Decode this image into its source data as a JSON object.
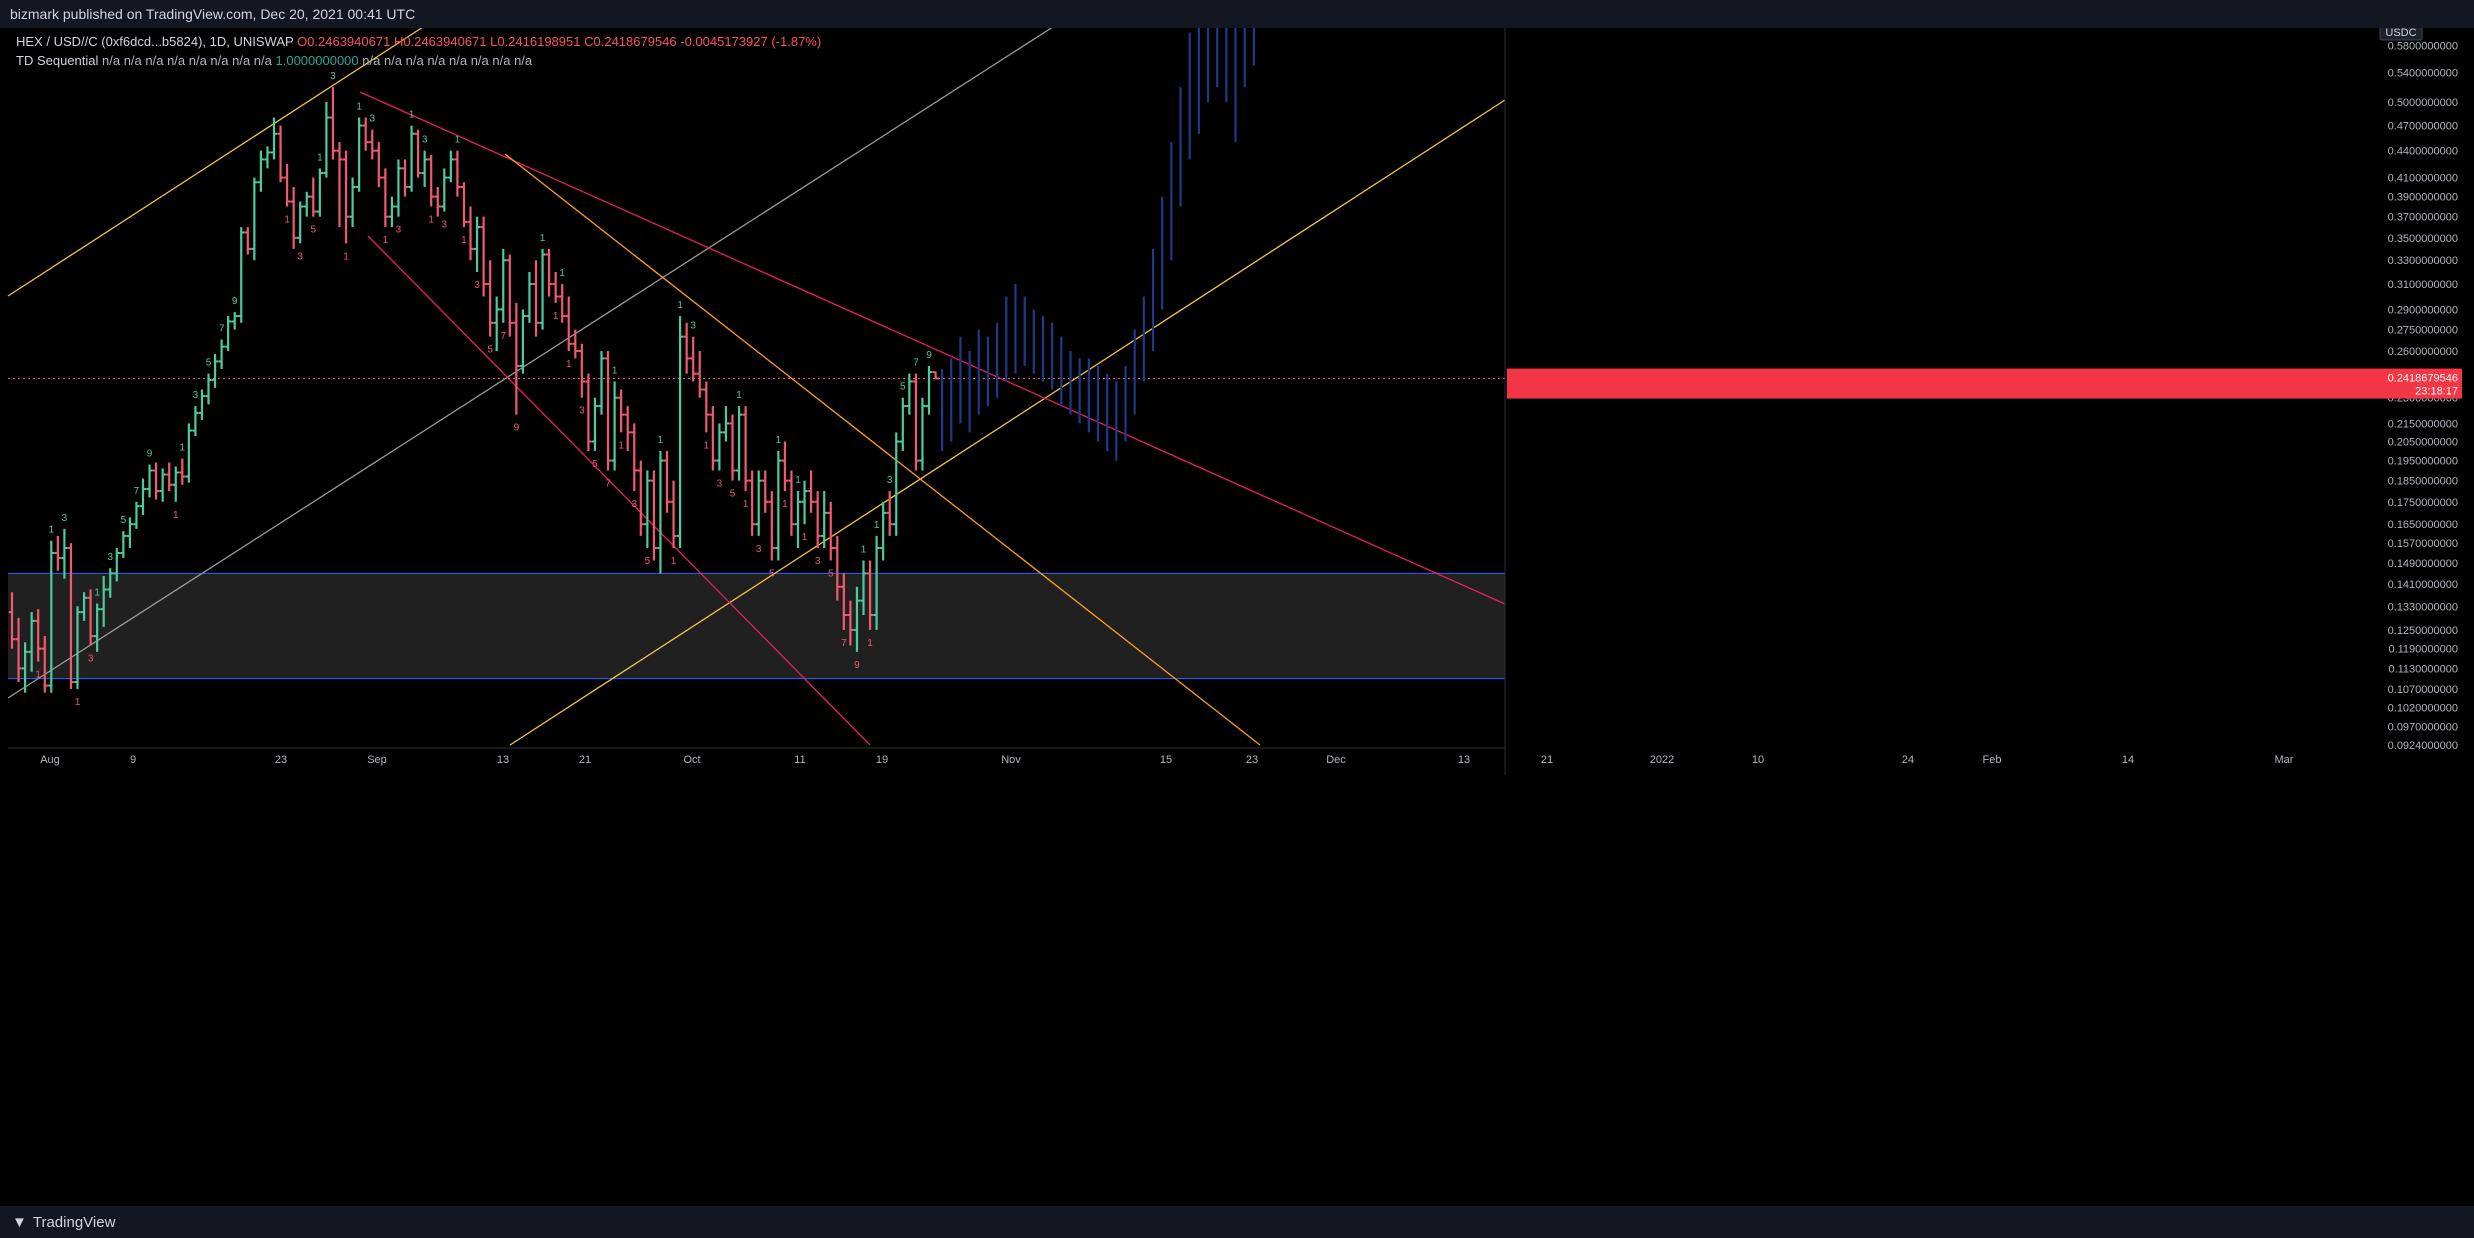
{
  "header": {
    "published": "bizmark published on TradingView.com, Dec 20, 2021 00:41 UTC"
  },
  "legend": {
    "symbol": "HEX / USD//C (0xf6dcd...b5824), 1D, UNISWAP",
    "open": "O0.2463940671",
    "high": "H0.2463940671",
    "low": "L0.2416198951",
    "close": "C0.2418679546",
    "change": "-0.0045173927 (-1.87%)",
    "indicator_name": "TD Sequential",
    "indicator_values_a": "n/a n/a n/a n/a n/a n/a n/a n/a",
    "indicator_highlight": "1.0000000000",
    "indicator_values_b": "n/a n/a n/a n/a n/a n/a n/a n/a"
  },
  "price_axis": {
    "currency": "USDC",
    "current_price": "0.2418679546",
    "countdown": "23:18:17"
  },
  "footer": {
    "brand": "TradingView"
  },
  "colors": {
    "up": "#4ecb9c",
    "down": "#f05a6e",
    "projection": "#1e3a8a",
    "trend_yellow": "#f5c542",
    "trend_orange": "#ff9f1a",
    "trend_pink": "#e91e63",
    "trend_gray": "#9a9a9a",
    "zone": "#3a3a3a",
    "zone_line": "#2962ff"
  },
  "chart_data": {
    "type": "candlestick",
    "symbol": "HEX / USD//C",
    "interval": "1D",
    "y_scale": "log",
    "ylim": [
      0.0924,
      0.63
    ],
    "y_ticks": [
      "0.6200000000",
      "0.5800000000",
      "0.5400000000",
      "0.5000000000",
      "0.4700000000",
      "0.4400000000",
      "0.4100000000",
      "0.3900000000",
      "0.3700000000",
      "0.3500000000",
      "0.3300000000",
      "0.3100000000",
      "0.2900000000",
      "0.2750000000",
      "0.2600000000",
      "0.2450000000",
      "0.2300000000",
      "0.2150000000",
      "0.2050000000",
      "0.1950000000",
      "0.1850000000",
      "0.1750000000",
      "0.1650000000",
      "0.1570000000",
      "0.1490000000",
      "0.1410000000",
      "0.1330000000",
      "0.1250000000",
      "0.1190000000",
      "0.1130000000",
      "0.1070000000",
      "0.1020000000",
      "0.0970000000",
      "0.0924000000"
    ],
    "x_ticks": [
      "Aug",
      "9",
      "23",
      "Sep",
      "13",
      "21",
      "Oct",
      "11",
      "19",
      "Nov",
      "15",
      "23",
      "Dec",
      "13",
      "21",
      "2022",
      "10",
      "24",
      "Feb",
      "14",
      "Mar"
    ],
    "ohlc": [
      [
        0.131,
        0.138,
        0.119,
        0.122
      ],
      [
        0.122,
        0.129,
        0.109,
        0.113
      ],
      [
        0.113,
        0.121,
        0.106,
        0.118
      ],
      [
        0.118,
        0.131,
        0.112,
        0.128
      ],
      [
        0.128,
        0.132,
        0.115,
        0.119
      ],
      [
        0.119,
        0.123,
        0.106,
        0.108
      ],
      [
        0.108,
        0.158,
        0.106,
        0.153
      ],
      [
        0.153,
        0.16,
        0.146,
        0.151
      ],
      [
        0.151,
        0.163,
        0.143,
        0.155
      ],
      [
        0.155,
        0.157,
        0.107,
        0.109
      ],
      [
        0.109,
        0.133,
        0.107,
        0.131
      ],
      [
        0.131,
        0.138,
        0.128,
        0.136
      ],
      [
        0.136,
        0.139,
        0.12,
        0.123
      ],
      [
        0.123,
        0.134,
        0.118,
        0.132
      ],
      [
        0.132,
        0.144,
        0.126,
        0.139
      ],
      [
        0.139,
        0.147,
        0.136,
        0.145
      ],
      [
        0.145,
        0.155,
        0.142,
        0.153
      ],
      [
        0.153,
        0.162,
        0.151,
        0.16
      ],
      [
        0.16,
        0.168,
        0.155,
        0.165
      ],
      [
        0.165,
        0.175,
        0.163,
        0.173
      ],
      [
        0.173,
        0.186,
        0.169,
        0.181
      ],
      [
        0.181,
        0.193,
        0.177,
        0.19
      ],
      [
        0.19,
        0.194,
        0.176,
        0.18
      ],
      [
        0.18,
        0.191,
        0.175,
        0.188
      ],
      [
        0.188,
        0.194,
        0.18,
        0.183
      ],
      [
        0.183,
        0.192,
        0.175,
        0.189
      ],
      [
        0.189,
        0.196,
        0.183,
        0.187
      ],
      [
        0.187,
        0.215,
        0.184,
        0.211
      ],
      [
        0.211,
        0.225,
        0.208,
        0.221
      ],
      [
        0.221,
        0.235,
        0.217,
        0.231
      ],
      [
        0.231,
        0.245,
        0.226,
        0.241
      ],
      [
        0.241,
        0.258,
        0.236,
        0.253
      ],
      [
        0.253,
        0.268,
        0.248,
        0.263
      ],
      [
        0.263,
        0.285,
        0.26,
        0.281
      ],
      [
        0.281,
        0.288,
        0.275,
        0.285
      ],
      [
        0.285,
        0.36,
        0.28,
        0.355
      ],
      [
        0.355,
        0.36,
        0.335,
        0.34
      ],
      [
        0.34,
        0.41,
        0.33,
        0.405
      ],
      [
        0.405,
        0.44,
        0.395,
        0.43
      ],
      [
        0.43,
        0.445,
        0.42,
        0.438
      ],
      [
        0.438,
        0.48,
        0.43,
        0.46
      ],
      [
        0.46,
        0.47,
        0.405,
        0.41
      ],
      [
        0.41,
        0.425,
        0.38,
        0.385
      ],
      [
        0.385,
        0.4,
        0.34,
        0.35
      ],
      [
        0.35,
        0.385,
        0.345,
        0.38
      ],
      [
        0.38,
        0.395,
        0.37,
        0.39
      ],
      [
        0.39,
        0.41,
        0.37,
        0.375
      ],
      [
        0.375,
        0.42,
        0.37,
        0.415
      ],
      [
        0.415,
        0.5,
        0.41,
        0.48
      ],
      [
        0.48,
        0.52,
        0.43,
        0.44
      ],
      [
        0.44,
        0.45,
        0.36,
        0.43
      ],
      [
        0.43,
        0.44,
        0.345,
        0.37
      ],
      [
        0.37,
        0.41,
        0.36,
        0.4
      ],
      [
        0.4,
        0.48,
        0.395,
        0.47
      ],
      [
        0.47,
        0.48,
        0.44,
        0.45
      ],
      [
        0.45,
        0.465,
        0.43,
        0.44
      ],
      [
        0.44,
        0.45,
        0.4,
        0.41
      ],
      [
        0.41,
        0.42,
        0.36,
        0.37
      ],
      [
        0.37,
        0.39,
        0.36,
        0.38
      ],
      [
        0.38,
        0.43,
        0.37,
        0.42
      ],
      [
        0.42,
        0.43,
        0.39,
        0.4
      ],
      [
        0.4,
        0.47,
        0.395,
        0.46
      ],
      [
        0.46,
        0.465,
        0.41,
        0.415
      ],
      [
        0.415,
        0.44,
        0.4,
        0.43
      ],
      [
        0.43,
        0.435,
        0.38,
        0.39
      ],
      [
        0.39,
        0.4,
        0.37,
        0.38
      ],
      [
        0.38,
        0.42,
        0.375,
        0.41
      ],
      [
        0.41,
        0.44,
        0.405,
        0.43
      ],
      [
        0.43,
        0.44,
        0.39,
        0.4
      ],
      [
        0.4,
        0.405,
        0.36,
        0.365
      ],
      [
        0.365,
        0.38,
        0.33,
        0.34
      ],
      [
        0.34,
        0.37,
        0.32,
        0.36
      ],
      [
        0.36,
        0.37,
        0.3,
        0.31
      ],
      [
        0.31,
        0.33,
        0.27,
        0.28
      ],
      [
        0.28,
        0.3,
        0.26,
        0.29
      ],
      [
        0.29,
        0.34,
        0.28,
        0.33
      ],
      [
        0.33,
        0.335,
        0.27,
        0.28
      ],
      [
        0.28,
        0.295,
        0.22,
        0.25
      ],
      [
        0.25,
        0.29,
        0.245,
        0.285
      ],
      [
        0.285,
        0.32,
        0.28,
        0.31
      ],
      [
        0.31,
        0.33,
        0.27,
        0.28
      ],
      [
        0.28,
        0.34,
        0.275,
        0.335
      ],
      [
        0.335,
        0.34,
        0.3,
        0.31
      ],
      [
        0.31,
        0.32,
        0.295,
        0.3
      ],
      [
        0.3,
        0.31,
        0.28,
        0.285
      ],
      [
        0.285,
        0.3,
        0.26,
        0.265
      ],
      [
        0.265,
        0.275,
        0.255,
        0.26
      ],
      [
        0.26,
        0.265,
        0.23,
        0.24
      ],
      [
        0.24,
        0.245,
        0.2,
        0.205
      ],
      [
        0.205,
        0.23,
        0.2,
        0.225
      ],
      [
        0.225,
        0.26,
        0.22,
        0.255
      ],
      [
        0.255,
        0.26,
        0.19,
        0.195
      ],
      [
        0.195,
        0.24,
        0.19,
        0.23
      ],
      [
        0.23,
        0.235,
        0.21,
        0.22
      ],
      [
        0.22,
        0.225,
        0.2,
        0.21
      ],
      [
        0.21,
        0.215,
        0.18,
        0.19
      ],
      [
        0.19,
        0.195,
        0.16,
        0.165
      ],
      [
        0.165,
        0.19,
        0.155,
        0.185
      ],
      [
        0.185,
        0.19,
        0.15,
        0.155
      ],
      [
        0.155,
        0.2,
        0.145,
        0.195
      ],
      [
        0.195,
        0.2,
        0.17,
        0.175
      ],
      [
        0.175,
        0.185,
        0.155,
        0.16
      ],
      [
        0.16,
        0.285,
        0.155,
        0.27
      ],
      [
        0.27,
        0.28,
        0.245,
        0.255
      ],
      [
        0.255,
        0.27,
        0.24,
        0.245
      ],
      [
        0.245,
        0.26,
        0.23,
        0.235
      ],
      [
        0.235,
        0.24,
        0.21,
        0.22
      ],
      [
        0.22,
        0.225,
        0.19,
        0.195
      ],
      [
        0.195,
        0.215,
        0.19,
        0.21
      ],
      [
        0.21,
        0.225,
        0.205,
        0.215
      ],
      [
        0.215,
        0.22,
        0.185,
        0.19
      ],
      [
        0.19,
        0.225,
        0.185,
        0.22
      ],
      [
        0.22,
        0.225,
        0.18,
        0.185
      ],
      [
        0.185,
        0.19,
        0.16,
        0.165
      ],
      [
        0.165,
        0.19,
        0.16,
        0.185
      ],
      [
        0.185,
        0.19,
        0.17,
        0.175
      ],
      [
        0.175,
        0.18,
        0.15,
        0.155
      ],
      [
        0.155,
        0.2,
        0.15,
        0.195
      ],
      [
        0.195,
        0.205,
        0.18,
        0.185
      ],
      [
        0.185,
        0.19,
        0.16,
        0.165
      ],
      [
        0.165,
        0.18,
        0.155,
        0.175
      ],
      [
        0.175,
        0.185,
        0.165,
        0.18
      ],
      [
        0.18,
        0.19,
        0.17,
        0.175
      ],
      [
        0.175,
        0.18,
        0.155,
        0.16
      ],
      [
        0.16,
        0.18,
        0.155,
        0.17
      ],
      [
        0.17,
        0.175,
        0.15,
        0.155
      ],
      [
        0.155,
        0.16,
        0.135,
        0.14
      ],
      [
        0.14,
        0.145,
        0.125,
        0.13
      ],
      [
        0.13,
        0.135,
        0.12,
        0.125
      ],
      [
        0.125,
        0.14,
        0.118,
        0.135
      ],
      [
        0.135,
        0.15,
        0.13,
        0.145
      ],
      [
        0.145,
        0.15,
        0.125,
        0.13
      ],
      [
        0.13,
        0.16,
        0.125,
        0.155
      ],
      [
        0.155,
        0.175,
        0.15,
        0.17
      ],
      [
        0.17,
        0.18,
        0.16,
        0.165
      ],
      [
        0.165,
        0.21,
        0.16,
        0.205
      ],
      [
        0.205,
        0.23,
        0.2,
        0.225
      ],
      [
        0.225,
        0.245,
        0.22,
        0.24
      ],
      [
        0.24,
        0.245,
        0.19,
        0.195
      ],
      [
        0.195,
        0.23,
        0.19,
        0.225
      ],
      [
        0.225,
        0.25,
        0.22,
        0.246
      ],
      [
        0.246,
        0.2464,
        0.2416,
        0.2419
      ]
    ],
    "projection": [
      [
        0.2419,
        0.248,
        0.2
      ],
      [
        0.23,
        0.255,
        0.205
      ],
      [
        0.235,
        0.27,
        0.215
      ],
      [
        0.245,
        0.26,
        0.21
      ],
      [
        0.25,
        0.275,
        0.22
      ],
      [
        0.24,
        0.27,
        0.225
      ],
      [
        0.245,
        0.28,
        0.23
      ],
      [
        0.255,
        0.3,
        0.24
      ],
      [
        0.26,
        0.31,
        0.245
      ],
      [
        0.265,
        0.3,
        0.25
      ],
      [
        0.27,
        0.29,
        0.245
      ],
      [
        0.26,
        0.285,
        0.24
      ],
      [
        0.255,
        0.28,
        0.235
      ],
      [
        0.25,
        0.27,
        0.225
      ],
      [
        0.245,
        0.26,
        0.22
      ],
      [
        0.24,
        0.255,
        0.215
      ],
      [
        0.235,
        0.255,
        0.21
      ],
      [
        0.23,
        0.25,
        0.205
      ],
      [
        0.225,
        0.245,
        0.2
      ],
      [
        0.22,
        0.24,
        0.195
      ],
      [
        0.225,
        0.25,
        0.205
      ],
      [
        0.235,
        0.275,
        0.22
      ],
      [
        0.25,
        0.3,
        0.24
      ],
      [
        0.27,
        0.34,
        0.26
      ],
      [
        0.3,
        0.39,
        0.29
      ],
      [
        0.35,
        0.45,
        0.33
      ],
      [
        0.4,
        0.52,
        0.38
      ],
      [
        0.45,
        0.6,
        0.43
      ],
      [
        0.5,
        0.65,
        0.46
      ],
      [
        0.55,
        0.66,
        0.5
      ],
      [
        0.58,
        0.64,
        0.52
      ],
      [
        0.6,
        0.65,
        0.5
      ],
      [
        0.62,
        0.66,
        0.45
      ],
      [
        0.61,
        0.65,
        0.52
      ],
      [
        0.6,
        0.64,
        0.55
      ]
    ],
    "td_sequential": "counts shown above/below candles",
    "support_zone": [
      0.11,
      0.145
    ],
    "last_price": 0.2418679546
  }
}
